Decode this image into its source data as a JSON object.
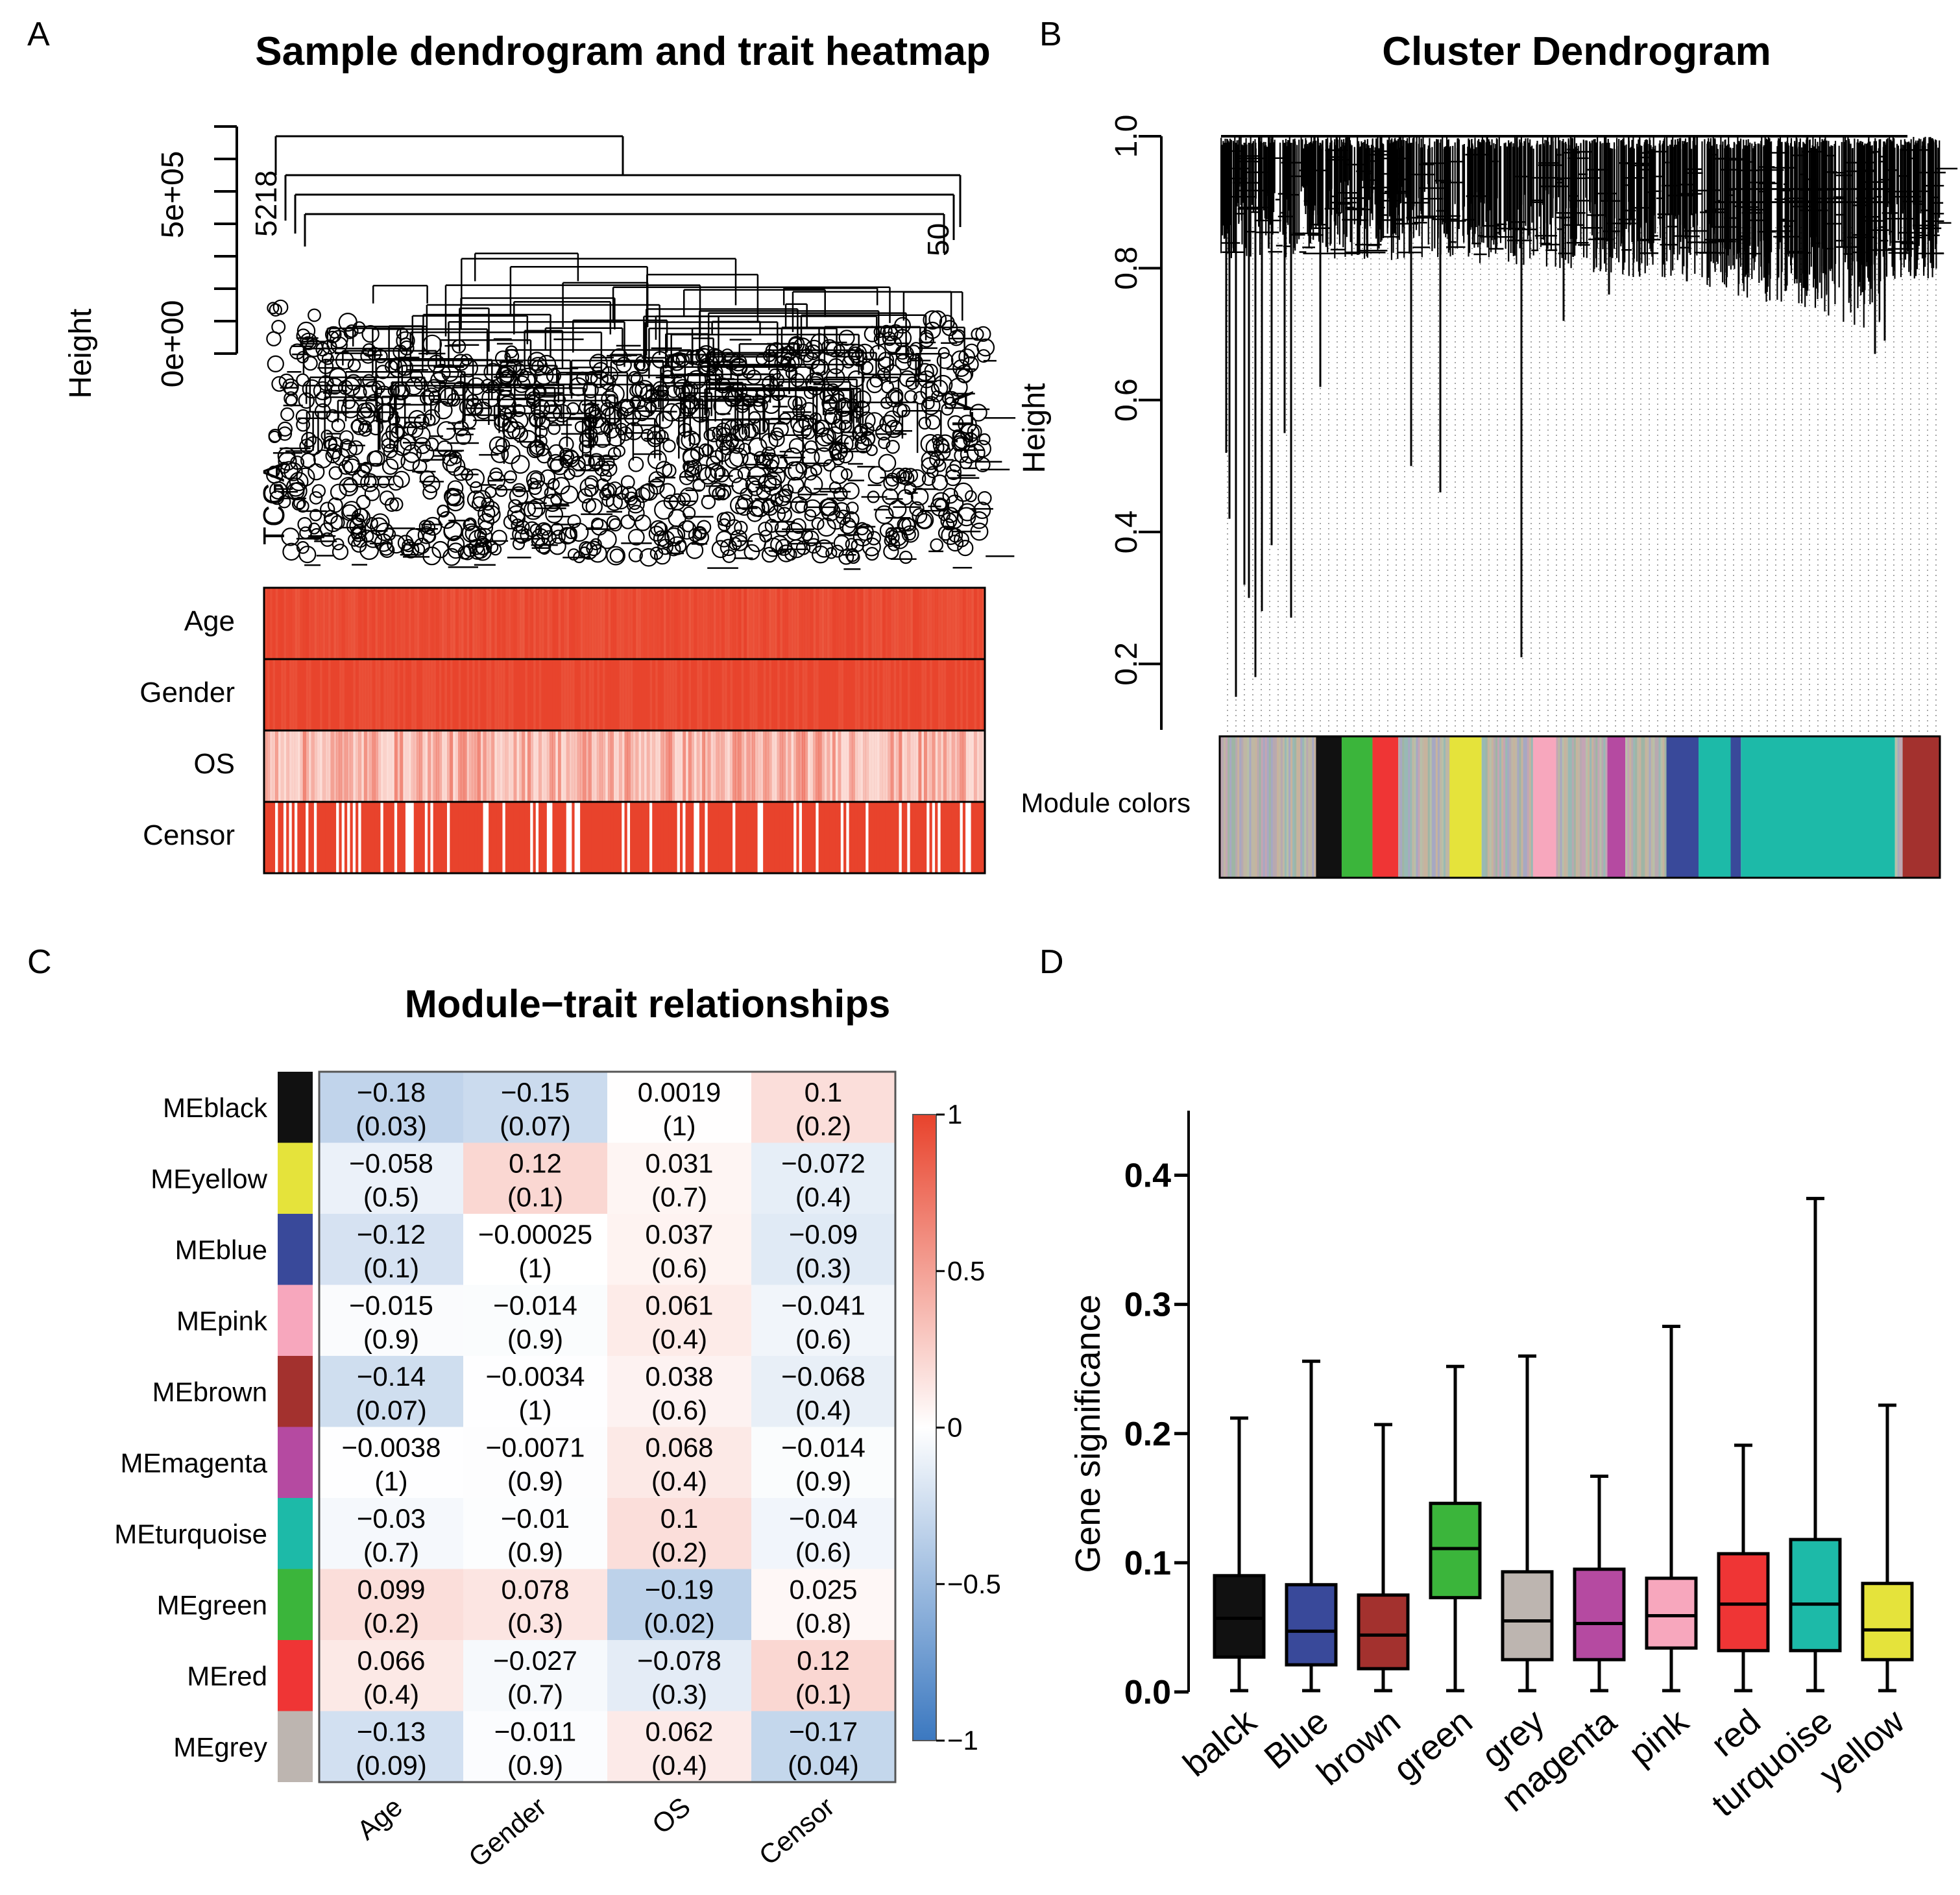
{
  "panel_letters": [
    "A",
    "B",
    "C",
    "D"
  ],
  "colors": {
    "heat_red": "#e8432c",
    "heat_blue": "#3b78c0",
    "module_black": "#111111",
    "module_yellow": "#e5e33b",
    "module_blue": "#39499a",
    "module_pink": "#f7a7bd",
    "module_brown": "#a3312e",
    "module_magenta": "#b54aa1",
    "module_turquoise": "#1dbaa8",
    "module_green": "#3bb53b",
    "module_red": "#ef3535",
    "module_grey": "#bdb5b0"
  },
  "chart_data": [
    {
      "panel": "A",
      "type": "heatmap",
      "title": "Sample dendrogram and trait heatmap",
      "ylabel": "Height",
      "y_ticks": [
        "0e+00",
        "5e+05"
      ],
      "leaf_labels_visible": [
        "5218",
        "50",
        "TCGA",
        "-2LA"
      ],
      "trait_rows": [
        "Age",
        "Gender",
        "OS",
        "Censor"
      ],
      "description_scale": "white-to-red intensity per sample"
    },
    {
      "panel": "B",
      "type": "heatmap",
      "title": "Cluster Dendrogram",
      "ylabel": "Height",
      "y_ticks": [
        "0.2",
        "0.4",
        "0.6",
        "0.8",
        "1.0"
      ],
      "ylim": [
        0.1,
        1.0
      ],
      "color_bar_label": "Module colors",
      "module_bar": [
        {
          "color": "grey-mix",
          "width": 75
        },
        {
          "color": "black",
          "width": 20
        },
        {
          "color": "green",
          "width": 24
        },
        {
          "color": "red",
          "width": 20
        },
        {
          "color": "grey-mix",
          "width": 40
        },
        {
          "color": "yellow",
          "width": 25
        },
        {
          "color": "grey-mix",
          "width": 40
        },
        {
          "color": "pink",
          "width": 18
        },
        {
          "color": "grey-mix",
          "width": 40
        },
        {
          "color": "magenta",
          "width": 14
        },
        {
          "color": "grey-mix",
          "width": 32
        },
        {
          "color": "blue",
          "width": 25
        },
        {
          "color": "turquoise",
          "width": 25
        },
        {
          "color": "blue",
          "width": 8
        },
        {
          "color": "turquoise",
          "width": 120
        },
        {
          "color": "grey-mix",
          "width": 6
        },
        {
          "color": "brown",
          "width": 29
        }
      ]
    },
    {
      "panel": "C",
      "type": "heatmap",
      "title": "Module−trait relationships",
      "columns": [
        "Age",
        "Gender",
        "OS",
        "Censor"
      ],
      "rows": [
        "MEblack",
        "MEyellow",
        "MEblue",
        "MEpink",
        "MEbrown",
        "MEmagenta",
        "MEturquoise",
        "MEgreen",
        "MEred",
        "MEgrey"
      ],
      "row_colors": [
        "#111111",
        "#e5e33b",
        "#39499a",
        "#f7a7bd",
        "#a3312e",
        "#b54aa1",
        "#1dbaa8",
        "#3bb53b",
        "#ef3535",
        "#bdb5b0"
      ],
      "values": [
        [
          -0.18,
          -0.15,
          0.0019,
          0.1
        ],
        [
          -0.058,
          0.12,
          0.031,
          -0.072
        ],
        [
          -0.12,
          -0.00025,
          0.037,
          -0.09
        ],
        [
          -0.015,
          -0.014,
          0.061,
          -0.041
        ],
        [
          -0.14,
          -0.0034,
          0.038,
          -0.068
        ],
        [
          -0.0038,
          -0.0071,
          0.068,
          -0.014
        ],
        [
          -0.03,
          -0.01,
          0.1,
          -0.04
        ],
        [
          0.099,
          0.078,
          -0.19,
          0.025
        ],
        [
          0.066,
          -0.027,
          -0.078,
          0.12
        ],
        [
          -0.13,
          -0.011,
          0.062,
          -0.17
        ]
      ],
      "value_labels": [
        [
          "−0.18",
          "−0.15",
          "0.0019",
          "0.1"
        ],
        [
          "−0.058",
          "0.12",
          "0.031",
          "−0.072"
        ],
        [
          "−0.12",
          "−0.00025",
          "0.037",
          "−0.09"
        ],
        [
          "−0.015",
          "−0.014",
          "0.061",
          "−0.041"
        ],
        [
          "−0.14",
          "−0.0034",
          "0.038",
          "−0.068"
        ],
        [
          "−0.0038",
          "−0.0071",
          "0.068",
          "−0.014"
        ],
        [
          "−0.03",
          "−0.01",
          "0.1",
          "−0.04"
        ],
        [
          "0.099",
          "0.078",
          "−0.19",
          "0.025"
        ],
        [
          "0.066",
          "−0.027",
          "−0.078",
          "0.12"
        ],
        [
          "−0.13",
          "−0.011",
          "0.062",
          "−0.17"
        ]
      ],
      "pvalues": [
        [
          "(0.03)",
          "(0.07)",
          "(1)",
          "(0.2)"
        ],
        [
          "(0.5)",
          "(0.1)",
          "(0.7)",
          "(0.4)"
        ],
        [
          "(0.1)",
          "(1)",
          "(0.6)",
          "(0.3)"
        ],
        [
          "(0.9)",
          "(0.9)",
          "(0.4)",
          "(0.6)"
        ],
        [
          "(0.07)",
          "(1)",
          "(0.6)",
          "(0.4)"
        ],
        [
          "(1)",
          "(0.9)",
          "(0.4)",
          "(0.9)"
        ],
        [
          "(0.7)",
          "(0.9)",
          "(0.2)",
          "(0.6)"
        ],
        [
          "(0.2)",
          "(0.3)",
          "(0.02)",
          "(0.8)"
        ],
        [
          "(0.4)",
          "(0.7)",
          "(0.3)",
          "(0.1)"
        ],
        [
          "(0.09)",
          "(0.9)",
          "(0.4)",
          "(0.04)"
        ]
      ],
      "colorbar_ticks": [
        "1",
        "0.5",
        "0",
        "−0.5",
        "−1"
      ],
      "colorbar_range": [
        -1,
        1
      ]
    },
    {
      "panel": "D",
      "type": "box",
      "ylabel": "Gene significance",
      "y_ticks": [
        "0.0",
        "0.1",
        "0.2",
        "0.3",
        "0.4"
      ],
      "ylim": [
        0,
        0.45
      ],
      "categories": [
        "balck",
        "Blue",
        "brown",
        "green",
        "grey",
        "magenta",
        "pink",
        "red",
        "turquoise",
        "yellow"
      ],
      "box_colors": [
        "#111111",
        "#39499a",
        "#a3312e",
        "#3bb53b",
        "#bdb5b0",
        "#b54aa1",
        "#f7a7bd",
        "#ef3535",
        "#1dbaa8",
        "#e5e33b"
      ],
      "min": [
        0.001,
        0.001,
        0.001,
        0.001,
        0.001,
        0.001,
        0.001,
        0.001,
        0.001,
        0.001
      ],
      "q1": [
        0.027,
        0.021,
        0.018,
        0.073,
        0.025,
        0.025,
        0.034,
        0.032,
        0.032,
        0.025
      ],
      "median": [
        0.057,
        0.047,
        0.044,
        0.111,
        0.055,
        0.053,
        0.059,
        0.068,
        0.068,
        0.048
      ],
      "q3": [
        0.09,
        0.083,
        0.075,
        0.146,
        0.093,
        0.095,
        0.088,
        0.107,
        0.118,
        0.084
      ],
      "max": [
        0.212,
        0.256,
        0.207,
        0.252,
        0.26,
        0.167,
        0.283,
        0.191,
        0.382,
        0.222
      ]
    }
  ]
}
